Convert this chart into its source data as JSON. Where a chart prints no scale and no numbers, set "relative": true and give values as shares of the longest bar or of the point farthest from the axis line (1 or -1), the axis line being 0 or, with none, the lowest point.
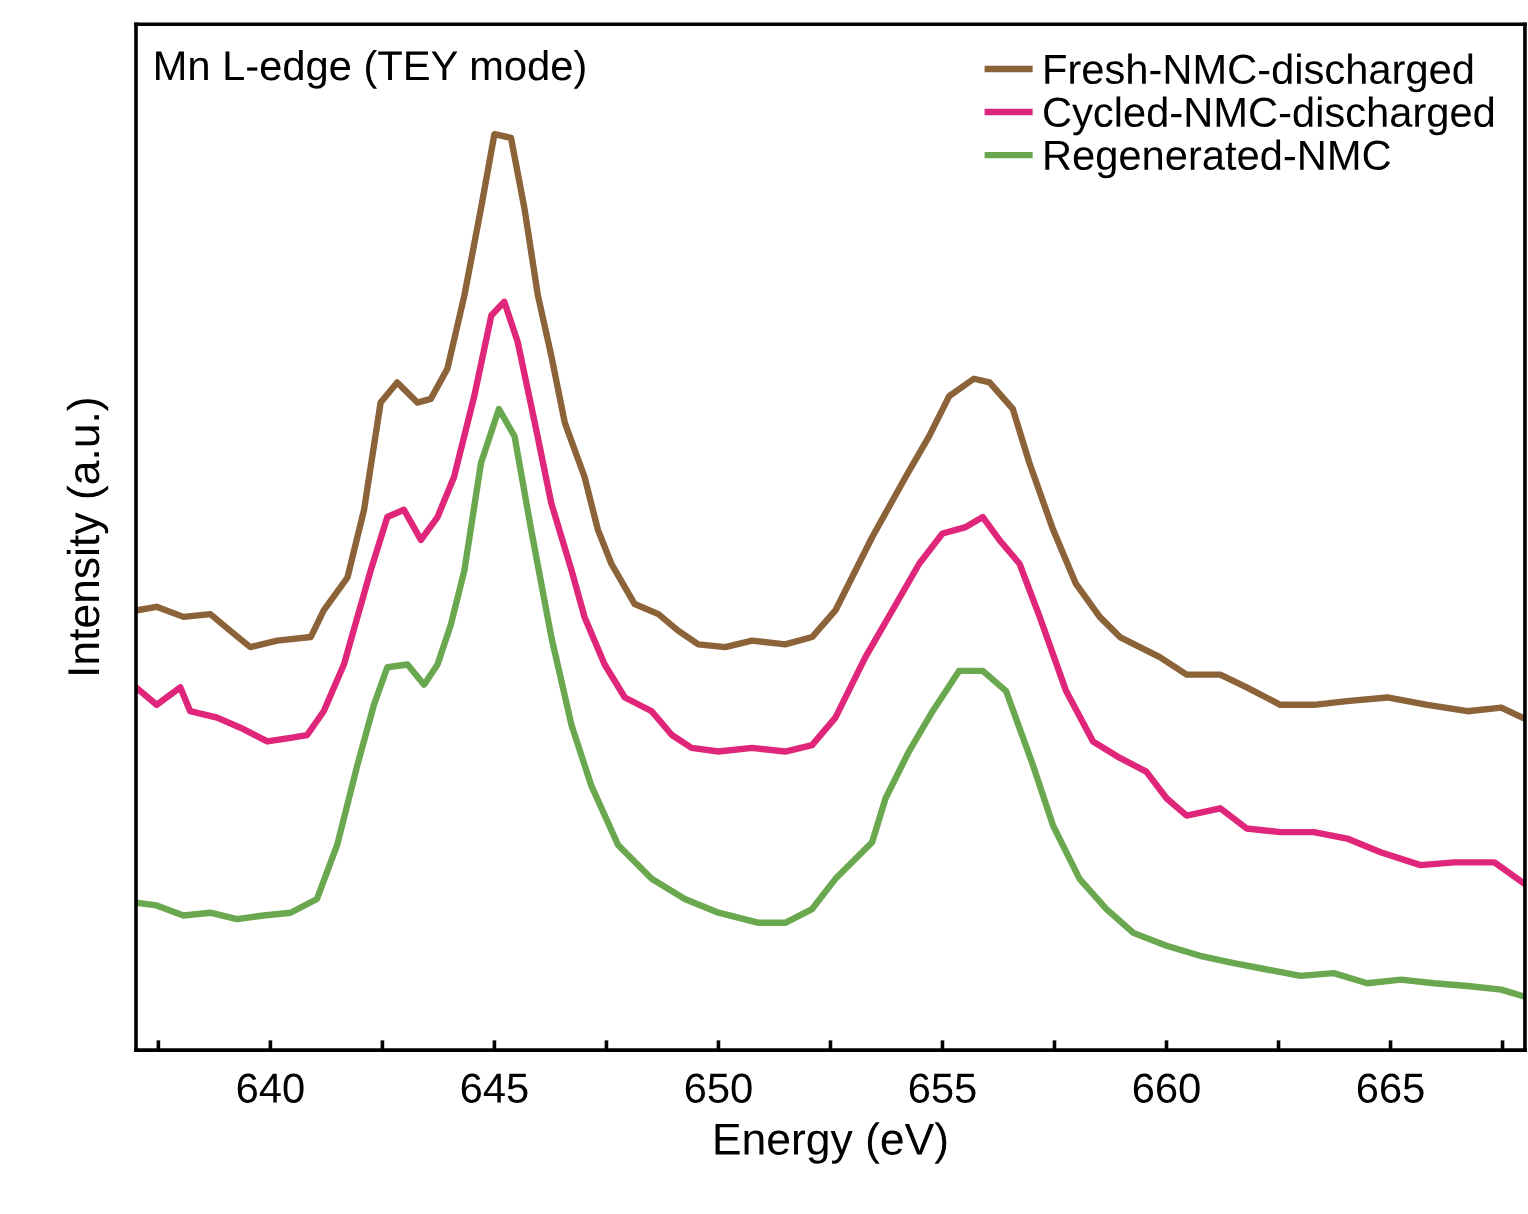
{
  "chart_data": {
    "type": "line",
    "xlabel": "Energy (eV)",
    "ylabel": "Intensity (a.u.)",
    "relative": true,
    "annotations": [
      "Mn L-edge (TEY mode)"
    ],
    "xlim": [
      637,
      668
    ],
    "xticks": [
      {
        "value": 637.5,
        "label": null
      },
      640,
      {
        "value": 642.5,
        "label": null
      },
      645,
      {
        "value": 647.5,
        "label": null
      },
      650,
      {
        "value": 652.5,
        "label": null
      },
      655,
      {
        "value": 657.5,
        "label": null
      },
      660,
      {
        "value": 662.5,
        "label": null
      },
      665,
      {
        "value": 667.5,
        "label": null
      }
    ],
    "tick_labels": "x",
    "grid": false,
    "legend": "top right",
    "marker": "none",
    "line_style": "solid",
    "series": [
      {
        "name": "Fresh-NMC-discharged",
        "color": "#8c6239",
        "x": [
          637.0,
          637.46,
          638.06,
          638.66,
          639.1,
          639.55,
          640.15,
          640.9,
          641.19,
          641.72,
          642.09,
          642.46,
          642.83,
          643.28,
          643.58,
          643.95,
          644.33,
          644.7,
          645.0,
          645.37,
          645.67,
          645.97,
          646.27,
          646.57,
          647.01,
          647.31,
          647.61,
          648.13,
          648.66,
          649.1,
          649.55,
          650.15,
          650.75,
          651.49,
          652.09,
          652.61,
          653.43,
          654.18,
          654.7,
          655.15,
          655.7,
          656.05,
          656.57,
          656.94,
          657.47,
          657.98,
          658.51,
          658.96,
          659.85,
          660.45,
          661.2,
          661.79,
          662.54,
          663.29,
          664.03,
          664.93,
          665.82,
          666.72,
          667.47,
          667.95
        ],
        "values": [
          0.48,
          0.484,
          0.473,
          0.476,
          0.458,
          0.44,
          0.447,
          0.451,
          0.48,
          0.516,
          0.59,
          0.707,
          0.729,
          0.707,
          0.711,
          0.744,
          0.824,
          0.919,
          1.0,
          0.996,
          0.919,
          0.824,
          0.758,
          0.685,
          0.626,
          0.568,
          0.531,
          0.487,
          0.476,
          0.458,
          0.443,
          0.44,
          0.447,
          0.443,
          0.451,
          0.48,
          0.56,
          0.626,
          0.67,
          0.714,
          0.733,
          0.729,
          0.7,
          0.641,
          0.568,
          0.509,
          0.473,
          0.451,
          0.429,
          0.41,
          0.41,
          0.396,
          0.377,
          0.377,
          0.381,
          0.385,
          0.377,
          0.37,
          0.374,
          0.363
        ]
      },
      {
        "name": "Cycled-NMC-discharged",
        "color": "#e0267a",
        "x": [
          637.0,
          637.46,
          637.99,
          638.21,
          638.81,
          639.33,
          639.93,
          640.45,
          640.82,
          641.19,
          641.64,
          642.24,
          642.61,
          642.98,
          643.36,
          643.73,
          644.1,
          644.55,
          644.93,
          645.22,
          645.52,
          645.9,
          646.27,
          646.72,
          647.01,
          647.46,
          647.91,
          648.51,
          648.96,
          649.4,
          650.0,
          650.75,
          651.49,
          652.09,
          652.61,
          653.28,
          653.88,
          654.48,
          655.0,
          655.52,
          655.9,
          656.27,
          656.72,
          657.17,
          657.76,
          658.36,
          658.96,
          659.55,
          660.0,
          660.45,
          661.2,
          661.79,
          662.54,
          663.29,
          664.03,
          664.78,
          665.67,
          666.42,
          667.32,
          667.95
        ],
        "values": [
          0.396,
          0.377,
          0.396,
          0.37,
          0.363,
          0.352,
          0.337,
          0.341,
          0.344,
          0.37,
          0.421,
          0.524,
          0.582,
          0.59,
          0.557,
          0.582,
          0.626,
          0.714,
          0.802,
          0.817,
          0.773,
          0.685,
          0.597,
          0.524,
          0.473,
          0.421,
          0.385,
          0.37,
          0.344,
          0.33,
          0.326,
          0.33,
          0.326,
          0.333,
          0.363,
          0.429,
          0.48,
          0.531,
          0.564,
          0.571,
          0.582,
          0.557,
          0.531,
          0.473,
          0.392,
          0.337,
          0.319,
          0.304,
          0.275,
          0.256,
          0.264,
          0.242,
          0.238,
          0.238,
          0.231,
          0.216,
          0.202,
          0.205,
          0.205,
          0.183
        ]
      },
      {
        "name": "Regenerated-NMC",
        "color": "#6aa84f",
        "x": [
          637.0,
          637.46,
          638.06,
          638.66,
          639.25,
          639.85,
          640.45,
          641.04,
          641.49,
          641.94,
          642.31,
          642.61,
          643.06,
          643.43,
          643.73,
          644.03,
          644.33,
          644.7,
          645.1,
          645.45,
          645.82,
          646.27,
          646.72,
          647.16,
          647.76,
          648.51,
          649.25,
          650.0,
          650.9,
          651.49,
          652.09,
          652.61,
          653.43,
          653.73,
          654.25,
          654.78,
          655.37,
          655.9,
          656.42,
          657.02,
          657.47,
          658.06,
          658.66,
          659.26,
          660.0,
          660.75,
          661.5,
          662.24,
          662.99,
          663.73,
          664.48,
          665.23,
          665.97,
          666.72,
          667.47,
          667.95
        ],
        "values": [
          0.161,
          0.158,
          0.147,
          0.15,
          0.143,
          0.147,
          0.15,
          0.165,
          0.224,
          0.311,
          0.377,
          0.418,
          0.421,
          0.399,
          0.421,
          0.465,
          0.524,
          0.641,
          0.7,
          0.67,
          0.568,
          0.451,
          0.355,
          0.289,
          0.224,
          0.187,
          0.165,
          0.15,
          0.139,
          0.139,
          0.154,
          0.187,
          0.227,
          0.275,
          0.326,
          0.37,
          0.414,
          0.414,
          0.392,
          0.311,
          0.245,
          0.187,
          0.154,
          0.128,
          0.114,
          0.103,
          0.095,
          0.088,
          0.081,
          0.084,
          0.073,
          0.077,
          0.073,
          0.07,
          0.066,
          0.059
        ]
      }
    ]
  }
}
